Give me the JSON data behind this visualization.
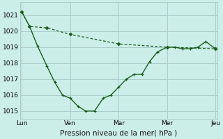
{
  "bg_color": "#cceee8",
  "grid_color": "#aacccc",
  "line_color": "#1a5c1a",
  "title": "Pression niveau de la mer( hPa )",
  "ylim": [
    1014.5,
    1021.8
  ],
  "yticks": [
    1015,
    1016,
    1017,
    1018,
    1019,
    1020,
    1021
  ],
  "day_positions": [
    0,
    0.25,
    0.5,
    0.75,
    1.0
  ],
  "day_labels": [
    "Lun",
    "Ven",
    "Mar",
    "Mer",
    "Jeu"
  ],
  "xlim": [
    -0.01,
    1.01
  ],
  "line1_x": [
    0.0,
    0.04,
    0.08,
    0.13,
    0.17,
    0.21,
    0.25,
    0.29,
    0.33,
    0.375,
    0.42,
    0.46,
    0.5,
    0.54,
    0.58,
    0.62,
    0.66,
    0.7,
    0.75,
    0.79,
    0.83,
    0.87,
    0.91,
    0.95,
    1.0
  ],
  "line1_y": [
    1021.2,
    1020.3,
    1019.1,
    1017.8,
    1016.8,
    1016.0,
    1015.8,
    1015.3,
    1015.0,
    1015.0,
    1015.8,
    1016.0,
    1016.5,
    1017.0,
    1017.3,
    1017.3,
    1018.1,
    1018.7,
    1019.0,
    1019.0,
    1018.9,
    1018.9,
    1019.0,
    1019.35,
    1018.9
  ],
  "line2_x": [
    0.0,
    0.04,
    0.13,
    0.25,
    0.5,
    0.75,
    1.0
  ],
  "line2_y": [
    1021.2,
    1020.3,
    1020.2,
    1019.8,
    1019.2,
    1019.0,
    1018.9
  ],
  "ytick_fontsize": 6.5,
  "xtick_fontsize": 6.5,
  "xlabel_fontsize": 7.5
}
